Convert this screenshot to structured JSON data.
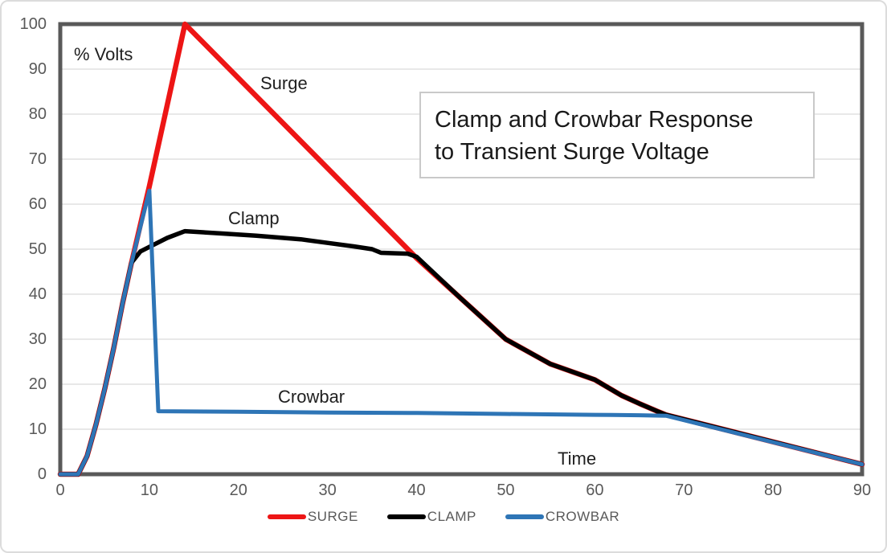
{
  "colors": {
    "plot_border": "#595959",
    "gridline": "#d9d9d9",
    "tick_text": "#595959",
    "annotation_text": "#1f1f1f",
    "title_box_border": "#c9c9c9",
    "surge_red": "#ed1515",
    "clamp_black": "#000000",
    "crowbar_blue": "#2e75b6"
  },
  "ui": {
    "title_box": {
      "line1": "Clamp and Crowbar Response",
      "line2": "to Transient Surge Voltage"
    }
  },
  "chart_data": {
    "type": "line",
    "title": "Clamp and Crowbar Response to Transient Surge Voltage",
    "xlabel": "Time",
    "ylabel": "% Volts",
    "xlim": [
      0,
      90
    ],
    "ylim": [
      0,
      100
    ],
    "x_ticks": [
      0,
      10,
      20,
      30,
      40,
      50,
      60,
      70,
      80,
      90
    ],
    "y_ticks": [
      0,
      10,
      20,
      30,
      40,
      50,
      60,
      70,
      80,
      90,
      100
    ],
    "grid": "horizontal-only",
    "legend_position": "bottom",
    "series": [
      {
        "name": "SURGE",
        "label": "Surge",
        "color": "#ed1515",
        "points": [
          [
            0,
            0
          ],
          [
            2,
            0
          ],
          [
            3,
            4
          ],
          [
            4,
            11
          ],
          [
            5,
            19
          ],
          [
            6,
            28
          ],
          [
            7,
            38
          ],
          [
            8,
            47
          ],
          [
            10,
            64
          ],
          [
            12,
            82
          ],
          [
            14,
            100
          ],
          [
            40,
            48
          ],
          [
            45,
            39
          ],
          [
            50,
            30
          ],
          [
            55,
            24.5
          ],
          [
            60,
            21
          ],
          [
            63,
            17.5
          ],
          [
            65,
            15.7
          ],
          [
            67,
            14
          ],
          [
            68,
            13.2
          ],
          [
            90,
            2.2
          ]
        ]
      },
      {
        "name": "CLAMP",
        "label": "Clamp",
        "color": "#000000",
        "points": [
          [
            0,
            0
          ],
          [
            2,
            0
          ],
          [
            3,
            4
          ],
          [
            4,
            11
          ],
          [
            5,
            19
          ],
          [
            6,
            28
          ],
          [
            7,
            38
          ],
          [
            8,
            47
          ],
          [
            9,
            49.5
          ],
          [
            10,
            50.5
          ],
          [
            12,
            52.5
          ],
          [
            14,
            54
          ],
          [
            18,
            53.5
          ],
          [
            22,
            53
          ],
          [
            27,
            52.2
          ],
          [
            30,
            51.4
          ],
          [
            33,
            50.6
          ],
          [
            35,
            50
          ],
          [
            36,
            49.2
          ],
          [
            39,
            49
          ],
          [
            40,
            48.3
          ],
          [
            45,
            39
          ],
          [
            50,
            30
          ],
          [
            55,
            24.5
          ],
          [
            60,
            21
          ],
          [
            63,
            17.5
          ],
          [
            65,
            15.7
          ],
          [
            67,
            14
          ],
          [
            68,
            13.2
          ],
          [
            90,
            2.2
          ]
        ]
      },
      {
        "name": "CROWBAR",
        "label": "Crowbar",
        "color": "#2e75b6",
        "points": [
          [
            0,
            0
          ],
          [
            2,
            0
          ],
          [
            3,
            4
          ],
          [
            4,
            11
          ],
          [
            5,
            19
          ],
          [
            6,
            28
          ],
          [
            7,
            38
          ],
          [
            8,
            47
          ],
          [
            10,
            63
          ],
          [
            11,
            14
          ],
          [
            20,
            13.9
          ],
          [
            30,
            13.7
          ],
          [
            40,
            13.6
          ],
          [
            50,
            13.4
          ],
          [
            60,
            13.2
          ],
          [
            65,
            13.1
          ],
          [
            68,
            13
          ],
          [
            90,
            2.2
          ]
        ]
      }
    ]
  }
}
